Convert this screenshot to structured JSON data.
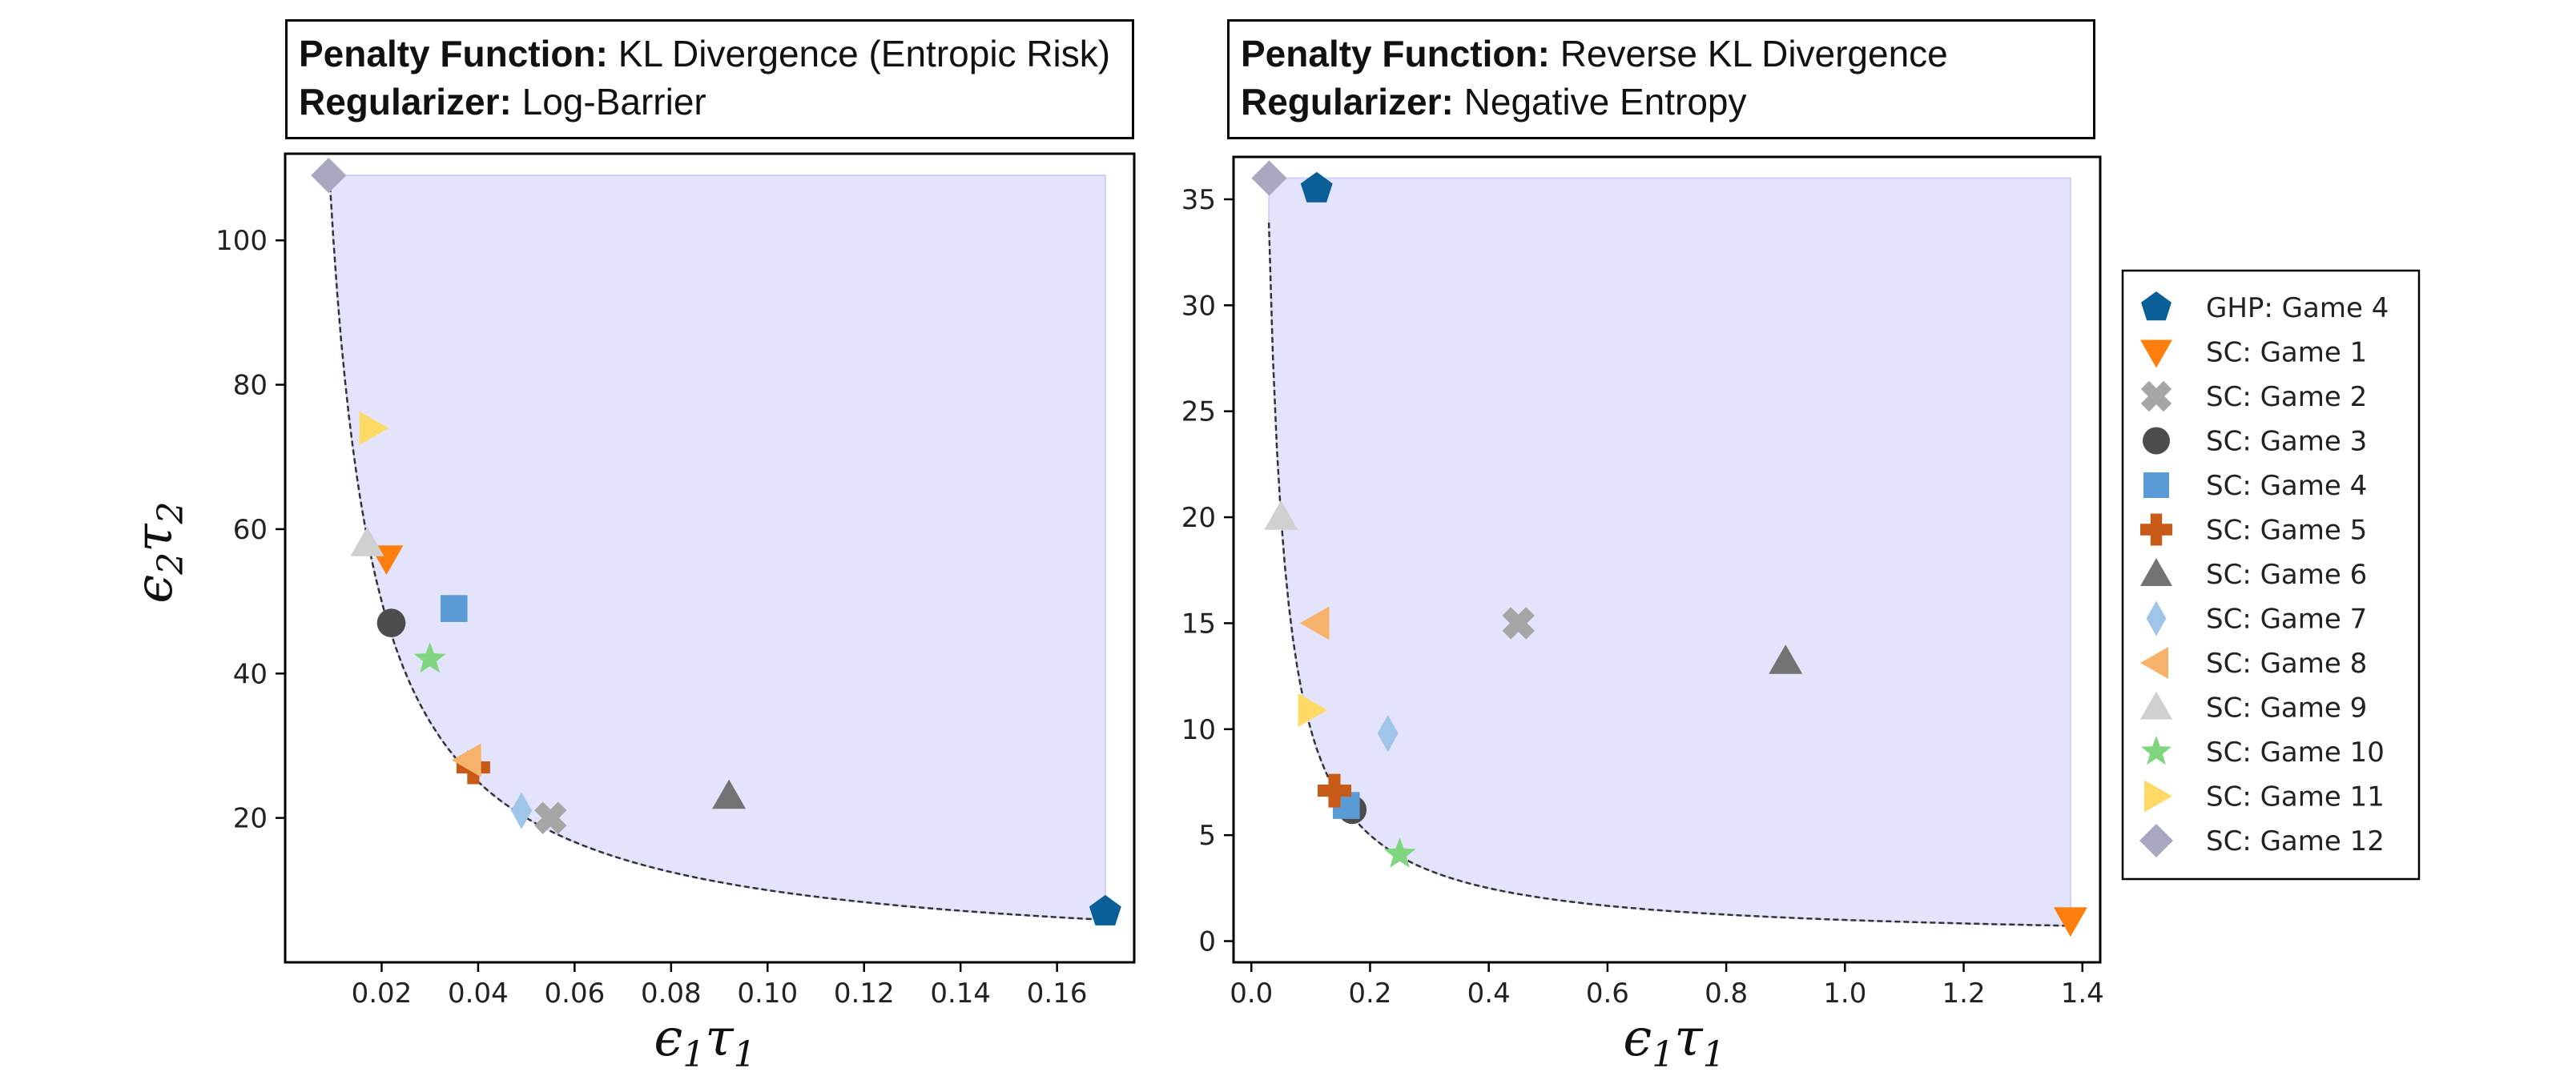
{
  "panels": [
    {
      "penalty_label": "Penalty Function:",
      "penalty_value": "KL Divergence (Entropic Risk)",
      "regularizer_label": "Regularizer:",
      "regularizer_value": "Log-Barrier"
    },
    {
      "penalty_label": "Penalty Function:",
      "penalty_value": "Reverse KL Divergence",
      "regularizer_label": "Regularizer:",
      "regularizer_value": "Negative Entropy"
    }
  ],
  "axes": {
    "xlabel_base": "ϵ",
    "xlabel_sub1": "1",
    "xlabel_mid": "τ",
    "xlabel_sub2": "1",
    "ylabel_base": "ϵ",
    "ylabel_sub1": "2",
    "ylabel_mid": "τ",
    "ylabel_sub2": "2"
  },
  "legend": [
    {
      "label": "GHP: Game 4",
      "marker": "pentagon",
      "color": "#0a5f99"
    },
    {
      "label": "SC: Game 1",
      "marker": "triangle-down",
      "color": "#ff7f0e"
    },
    {
      "label": "SC: Game 2",
      "marker": "x-cross",
      "color": "#a6a6a6"
    },
    {
      "label": "SC: Game 3",
      "marker": "circle",
      "color": "#4d4d4d"
    },
    {
      "label": "SC: Game 4",
      "marker": "square",
      "color": "#5b9bd5"
    },
    {
      "label": "SC: Game 5",
      "marker": "plus",
      "color": "#c85a17"
    },
    {
      "label": "SC: Game 6",
      "marker": "triangle-up",
      "color": "#737373"
    },
    {
      "label": "SC: Game 7",
      "marker": "thin-diamond",
      "color": "#9fc5e8"
    },
    {
      "label": "SC: Game 8",
      "marker": "triangle-left",
      "color": "#f6b26b"
    },
    {
      "label": "SC: Game 9",
      "marker": "triangle-up",
      "color": "#d0d0d0"
    },
    {
      "label": "SC: Game 10",
      "marker": "star",
      "color": "#7fd67f"
    },
    {
      "label": "SC: Game 11",
      "marker": "triangle-right",
      "color": "#ffd966"
    },
    {
      "label": "SC: Game 12",
      "marker": "diamond",
      "color": "#a8a8c0"
    }
  ],
  "chart_data": [
    {
      "type": "scatter",
      "xlim": [
        0.0,
        0.176
      ],
      "ylim": [
        0,
        112
      ],
      "xticks": [
        0.02,
        0.04,
        0.06,
        0.08,
        0.1,
        0.12,
        0.14,
        0.16
      ],
      "xtick_labels": [
        "0.02",
        "0.04",
        "0.06",
        "0.08",
        "0.10",
        "0.12",
        "0.14",
        "0.16"
      ],
      "yticks": [
        20,
        40,
        60,
        80,
        100
      ],
      "ytick_labels": [
        "20",
        "40",
        "60",
        "80",
        "100"
      ],
      "shaded_region": {
        "x": [
          0.009,
          0.17
        ],
        "y_top": 109,
        "color": "#e3e3fb"
      },
      "frontier_curve": {
        "k": 1.0,
        "x_start": 0.0092,
        "x_end": 0.17
      },
      "points": [
        {
          "x": 0.17,
          "y": 7,
          "series": "GHP: Game 4"
        },
        {
          "x": 0.021,
          "y": 56,
          "series": "SC: Game 1"
        },
        {
          "x": 0.055,
          "y": 20,
          "series": "SC: Game 2"
        },
        {
          "x": 0.022,
          "y": 47,
          "series": "SC: Game 3"
        },
        {
          "x": 0.035,
          "y": 49,
          "series": "SC: Game 4"
        },
        {
          "x": 0.039,
          "y": 27,
          "series": "SC: Game 5"
        },
        {
          "x": 0.092,
          "y": 23,
          "series": "SC: Game 6"
        },
        {
          "x": 0.049,
          "y": 21,
          "series": "SC: Game 7"
        },
        {
          "x": 0.038,
          "y": 28,
          "series": "SC: Game 8"
        },
        {
          "x": 0.017,
          "y": 58,
          "series": "SC: Game 9"
        },
        {
          "x": 0.03,
          "y": 42,
          "series": "SC: Game 10"
        },
        {
          "x": 0.018,
          "y": 74,
          "series": "SC: Game 11"
        },
        {
          "x": 0.009,
          "y": 109,
          "series": "SC: Game 12"
        }
      ]
    },
    {
      "type": "scatter",
      "xlim": [
        -0.03,
        1.43
      ],
      "ylim": [
        -1,
        37
      ],
      "xticks": [
        0.0,
        0.2,
        0.4,
        0.6,
        0.8,
        1.0,
        1.2,
        1.4
      ],
      "xtick_labels": [
        "0.0",
        "0.2",
        "0.4",
        "0.6",
        "0.8",
        "1.0",
        "1.2",
        "1.4"
      ],
      "yticks": [
        0,
        5,
        10,
        15,
        20,
        25,
        30,
        35
      ],
      "ytick_labels": [
        "0",
        "5",
        "10",
        "15",
        "20",
        "25",
        "30",
        "35"
      ],
      "shaded_region": {
        "x": [
          0.03,
          1.38
        ],
        "y_top": 36,
        "color": "#e3e3fb"
      },
      "frontier_curve": {
        "k": 1.0,
        "x_start": 0.0295,
        "x_end": 1.38
      },
      "points": [
        {
          "x": 0.11,
          "y": 35.5,
          "series": "GHP: Game 4"
        },
        {
          "x": 1.38,
          "y": 1.0,
          "series": "SC: Game 1"
        },
        {
          "x": 0.45,
          "y": 15,
          "series": "SC: Game 2"
        },
        {
          "x": 0.17,
          "y": 6.2,
          "series": "SC: Game 3"
        },
        {
          "x": 0.16,
          "y": 6.4,
          "series": "SC: Game 4"
        },
        {
          "x": 0.14,
          "y": 7.1,
          "series": "SC: Game 5"
        },
        {
          "x": 0.9,
          "y": 13.2,
          "series": "SC: Game 6"
        },
        {
          "x": 0.23,
          "y": 9.8,
          "series": "SC: Game 7"
        },
        {
          "x": 0.11,
          "y": 15,
          "series": "SC: Game 8"
        },
        {
          "x": 0.05,
          "y": 20,
          "series": "SC: Game 9"
        },
        {
          "x": 0.25,
          "y": 4.1,
          "series": "SC: Game 10"
        },
        {
          "x": 0.1,
          "y": 10.9,
          "series": "SC: Game 11"
        },
        {
          "x": 0.03,
          "y": 36,
          "series": "SC: Game 12"
        }
      ]
    }
  ]
}
